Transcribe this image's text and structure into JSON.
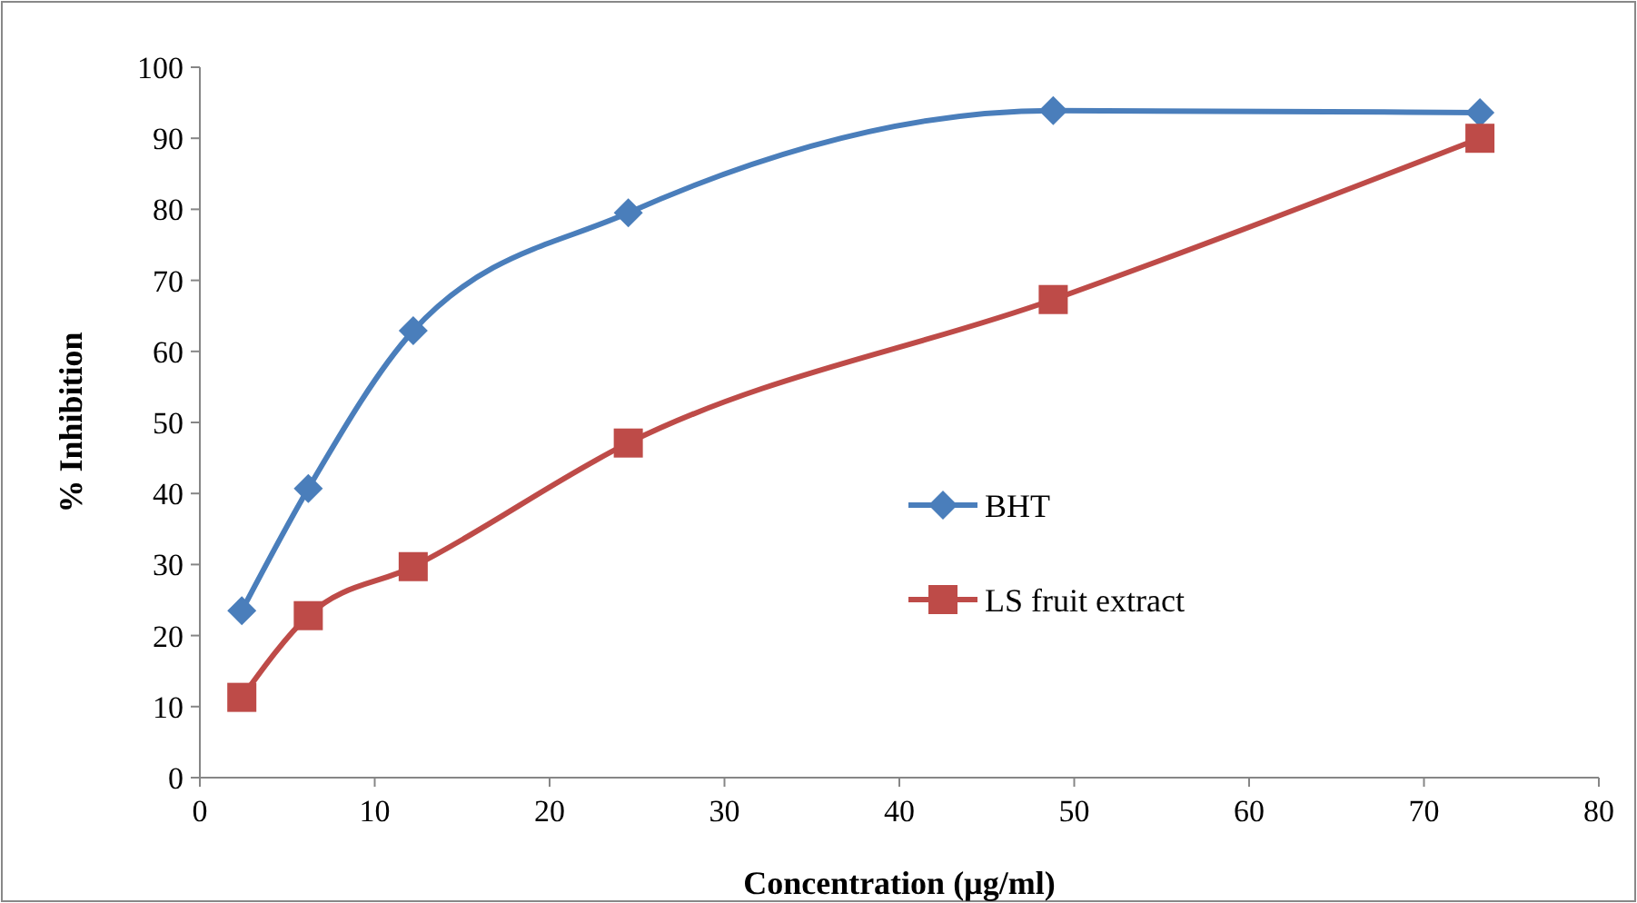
{
  "chart_data": {
    "type": "line",
    "xlabel": "Concentration (µg/ml)",
    "ylabel": "% Inhibition",
    "xlim": [
      0,
      80
    ],
    "xticks": [
      0,
      10,
      20,
      30,
      40,
      50,
      60,
      70,
      80
    ],
    "ylim": [
      0,
      100
    ],
    "yticks": [
      0,
      10,
      20,
      30,
      40,
      50,
      60,
      70,
      80,
      90,
      100
    ],
    "grid": false,
    "legend": "right",
    "series": [
      {
        "name": "BHT",
        "color": "#4a7ebb",
        "marker": "diamond",
        "x": [
          2.4,
          6.2,
          12.2,
          24.5,
          48.8,
          73.2
        ],
        "values": [
          23.5,
          40.7,
          62.9,
          79.5,
          93.9,
          93.6
        ]
      },
      {
        "name": "LS fruit extract",
        "color": "#be4b48",
        "marker": "square",
        "x": [
          2.4,
          6.2,
          12.2,
          24.5,
          48.8,
          73.2
        ],
        "values": [
          11.3,
          22.8,
          29.7,
          47.1,
          67.3,
          90.0
        ]
      }
    ]
  }
}
